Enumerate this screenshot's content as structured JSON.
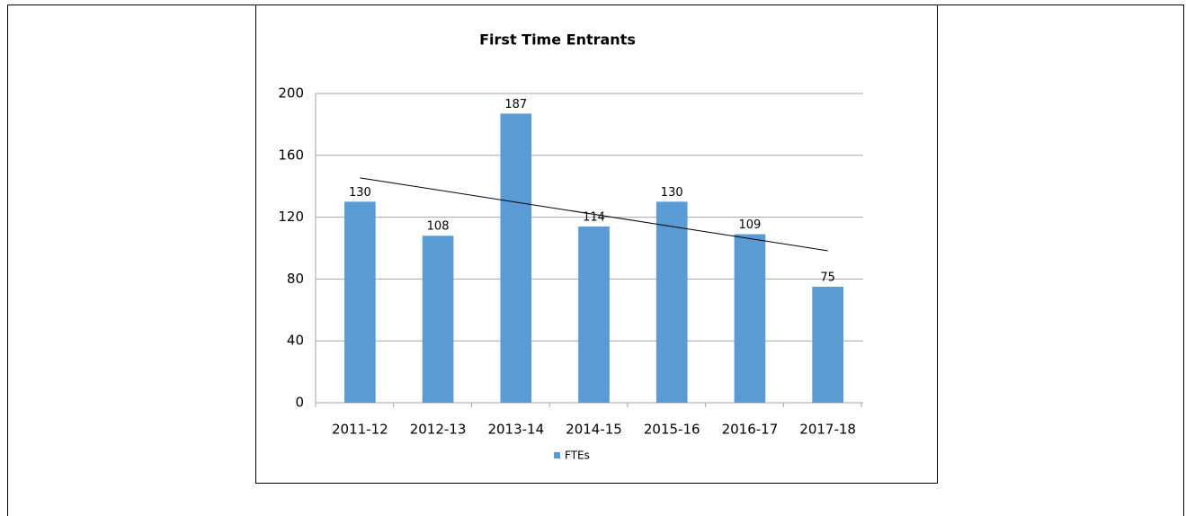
{
  "chart_data": {
    "type": "bar",
    "title": "First Time Entrants",
    "categories": [
      "2011-12",
      "2012-13",
      "2013-14",
      "2014-15",
      "2015-16",
      "2016-17",
      "2017-18"
    ],
    "series": [
      {
        "name": "FTEs",
        "color": "#5b9bd5",
        "values": [
          130,
          108,
          187,
          114,
          130,
          109,
          75
        ]
      }
    ],
    "ylim": [
      0,
      200
    ],
    "yticks": [
      0,
      40,
      80,
      120,
      160,
      200
    ],
    "grid": true,
    "trendline": "linear",
    "legend": "bottom"
  }
}
